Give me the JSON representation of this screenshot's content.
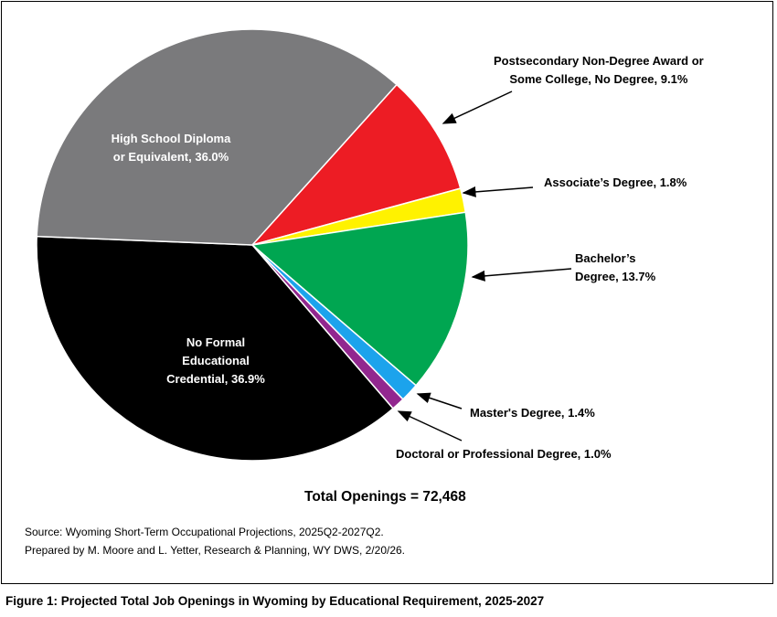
{
  "chart_data": {
    "type": "pie",
    "title": "",
    "total_label": "Total Openings = 72,468",
    "slices": [
      {
        "name": "Postsecondary Non-Degree Award or Some College, No Degree",
        "value": 9.1,
        "color": "#ED1C24",
        "label_lines": [
          "Postsecondary Non-Degree Award or",
          "Some College, No Degree, 9.1%"
        ]
      },
      {
        "name": "Associate’s Degree",
        "value": 1.8,
        "color": "#FFF200",
        "label_lines": [
          "Associate’s Degree, 1.8%"
        ]
      },
      {
        "name": "Bachelor’s Degree",
        "value": 13.7,
        "color": "#00A651",
        "label_lines": [
          "Bachelor’s",
          "Degree, 13.7%"
        ]
      },
      {
        "name": "Master's Degree",
        "value": 1.4,
        "color": "#1CA3EC",
        "label_lines": [
          "Master's Degree, 1.4%"
        ]
      },
      {
        "name": "Doctoral or Professional Degree",
        "value": 1.0,
        "color": "#92278F",
        "label_lines": [
          "Doctoral or Professional Degree, 1.0%"
        ]
      },
      {
        "name": "No Formal Educational Credential",
        "value": 36.9,
        "color": "#000000",
        "label_lines": [
          "No Formal",
          "Educational",
          "Credential, 36.9%"
        ]
      },
      {
        "name": "High School Diploma or Equivalent",
        "value": 36.0,
        "color": "#7A7A7C",
        "label_lines": [
          "High School Diploma",
          "or Equivalent, 36.0%"
        ]
      }
    ]
  },
  "source": [
    "Source: Wyoming Short-Term Occupational Projections, 2025Q2-2027Q2.",
    "Prepared by M. Moore and L. Yetter, Research & Planning, WY DWS, 2/20/26."
  ],
  "caption": "Figure 1: Projected Total Job Openings in Wyoming by Educational Requirement, 2025-2027"
}
